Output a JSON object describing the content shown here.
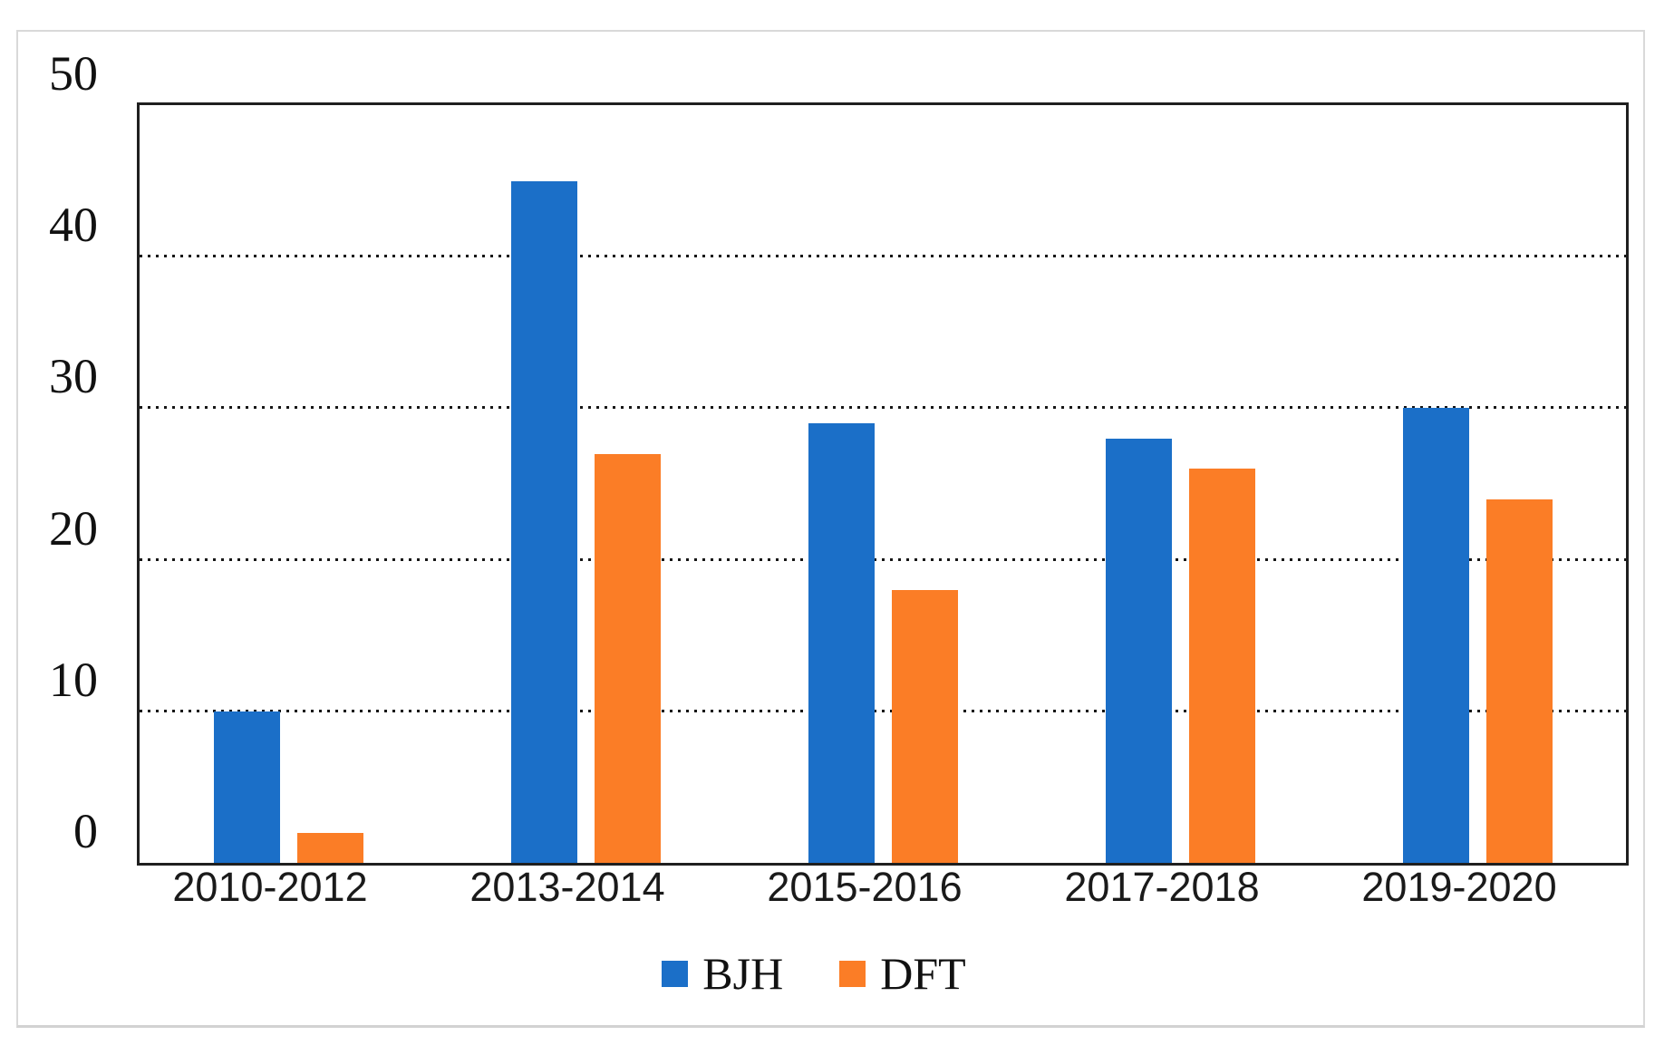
{
  "chart_data": {
    "type": "bar",
    "title": "",
    "xlabel": "",
    "ylabel": "",
    "categories": [
      "2010-2012",
      "2013-2014",
      "2015-2016",
      "2017-2018",
      "2019-2020"
    ],
    "series": [
      {
        "name": "BJH",
        "color": "#1B6FC8",
        "values": [
          10,
          45,
          29,
          28,
          30
        ]
      },
      {
        "name": "DFT",
        "color": "#FB7D26",
        "values": [
          2,
          27,
          18,
          26,
          24
        ]
      }
    ],
    "ylim": [
      0,
      50
    ],
    "yticks": [
      0,
      10,
      20,
      30,
      40,
      50
    ],
    "gridlines": [
      10,
      20,
      30,
      40
    ],
    "grid_style": "dotted",
    "grid_color": "#161616",
    "legend_position": "bottom-center",
    "plot_border_color": "#1f1f1f",
    "frame_border_color": "#d9d9d9"
  }
}
